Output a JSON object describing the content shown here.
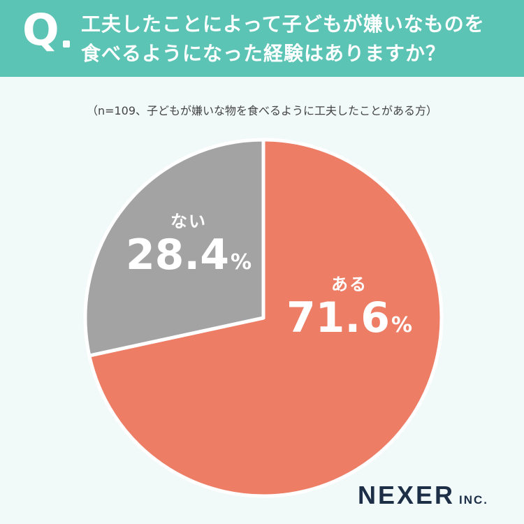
{
  "header": {
    "q_mark": "Q",
    "question_line1": "工夫したことによって子どもが嫌いなものを",
    "question_line2": "食べるようになった経験はありますか？"
  },
  "note": "（n=109、子どもが嫌いな物を食べるように工夫したことがある方）",
  "chart_data": {
    "type": "pie",
    "title": "工夫したことによって子どもが嫌いなものを食べるようになった経験はありますか？",
    "categories": [
      "ある",
      "ない"
    ],
    "values": [
      71.6,
      28.4
    ],
    "unit": "%",
    "value_labels": [
      "71.6",
      "28.4"
    ],
    "colors": [
      "#ee7d66",
      "#a3a3a3"
    ],
    "start_angle": "12 o'clock",
    "direction": "clockwise"
  },
  "logo": {
    "name": "NEXER",
    "suffix": "INC."
  }
}
